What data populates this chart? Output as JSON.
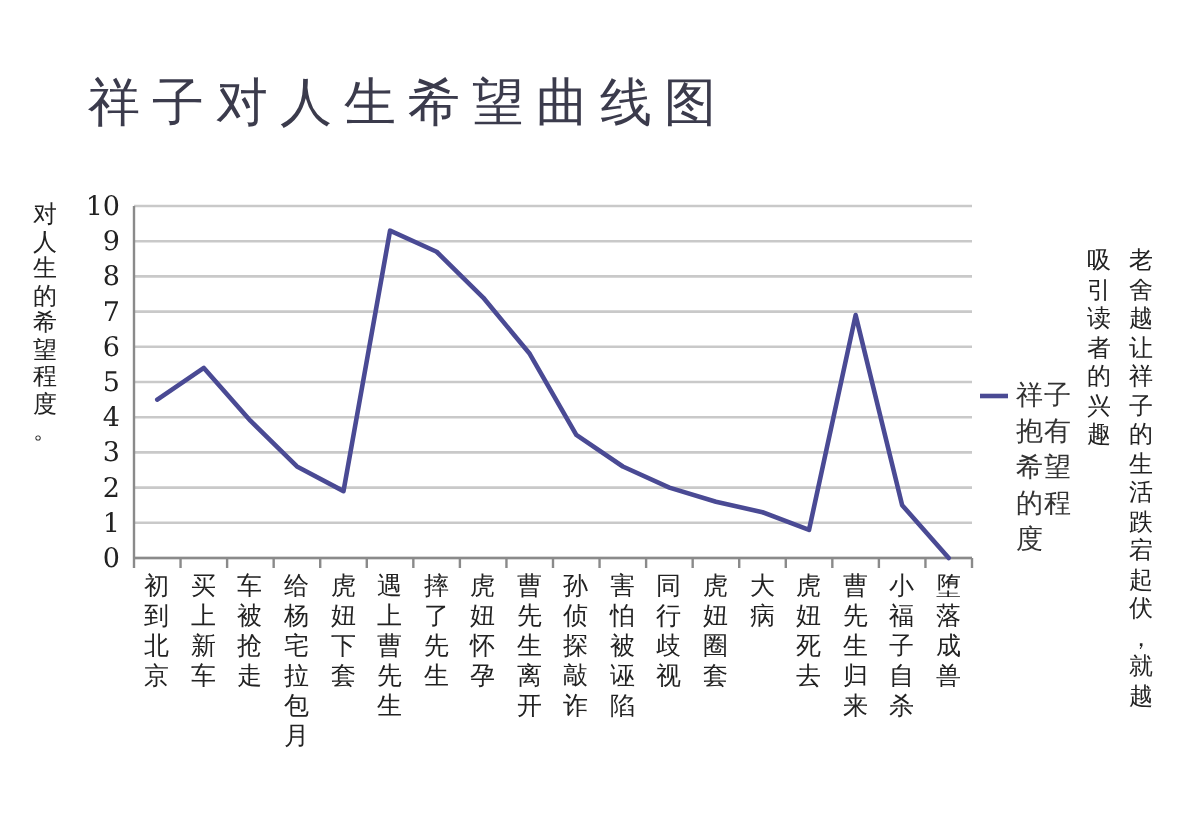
{
  "chart_data": {
    "type": "line",
    "title": "祥子对人生希望曲线图",
    "ylabel": "对人生的希望程度。",
    "categories": [
      "初到北京",
      "买上新车",
      "车被抢走",
      "给杨宅拉包月",
      "虎妞下套",
      "遇上曹先生",
      "摔了先生",
      "虎妞怀孕",
      "曹先生离开",
      "孙侦探敲诈",
      "害怕被诬陷",
      "同行歧视",
      "虎妞圈套",
      "大病",
      "虎妞死去",
      "曹先生归来",
      "小福子自杀",
      "堕落成兽"
    ],
    "series": [
      {
        "name": "祥子抱有希望的程度",
        "color": "#4a4a94",
        "values": [
          4.5,
          5.4,
          3.9,
          2.6,
          1.9,
          9.3,
          8.7,
          7.4,
          5.8,
          3.5,
          2.6,
          2.0,
          1.6,
          1.3,
          0.8,
          6.9,
          1.5,
          0
        ]
      }
    ],
    "ylim": [
      0,
      10
    ],
    "yticks": [
      0,
      1,
      2,
      3,
      4,
      5,
      6,
      7,
      8,
      9,
      10
    ],
    "grid": "y",
    "legend": "right",
    "annotations": [
      "老舍越让祥子的生活跌宕起伏，就越吸引读者的兴趣"
    ]
  }
}
